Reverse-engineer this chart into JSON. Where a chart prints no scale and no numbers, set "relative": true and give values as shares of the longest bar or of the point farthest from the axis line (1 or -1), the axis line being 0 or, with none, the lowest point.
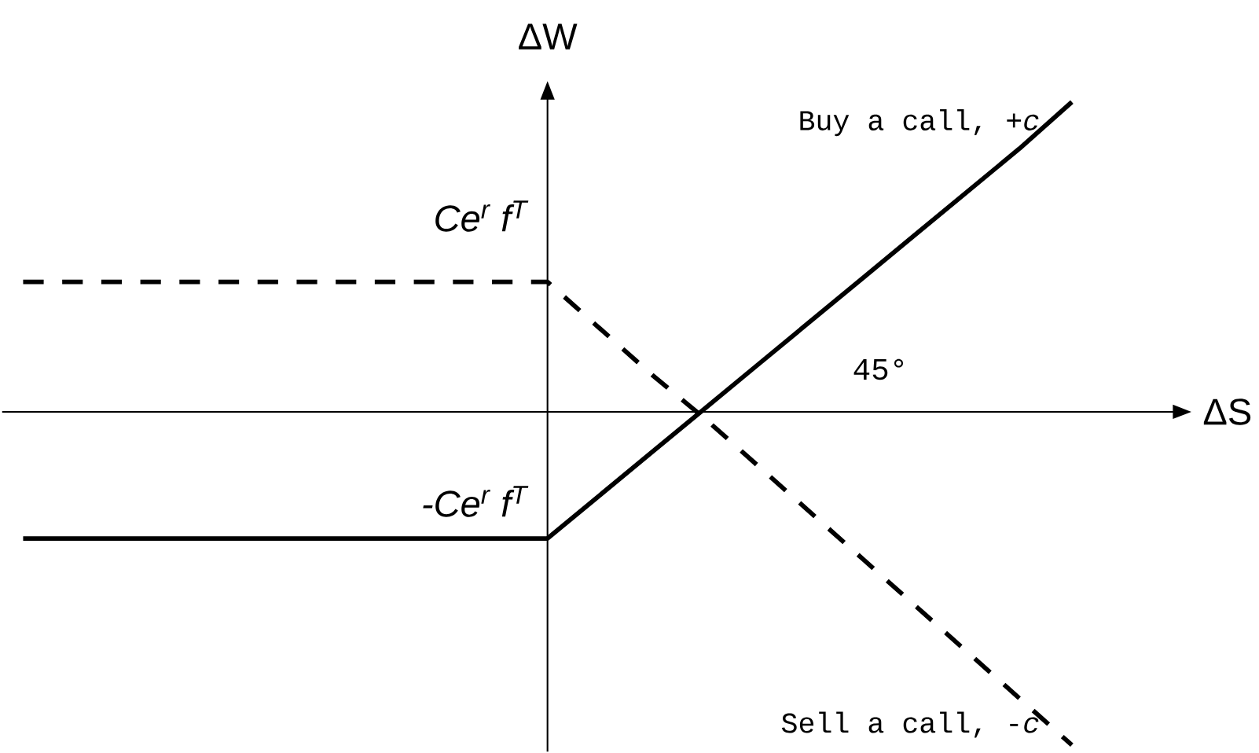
{
  "chart_data": {
    "type": "line",
    "relative": true,
    "xlabel": "ΔS",
    "ylabel": "ΔW",
    "categories": [
      null,
      null,
      null,
      null,
      null,
      null,
      null,
      null,
      null,
      null,
      null,
      null,
      null,
      null,
      null,
      null,
      null,
      null,
      null,
      null,
      null
    ],
    "series": [
      {
        "name": "Buy a call, +*c*",
        "color": "#000000",
        "line_style": "solid",
        "values": [
          -0.38,
          -0.38,
          -0.38,
          -0.38,
          -0.38,
          -0.38,
          -0.38,
          -0.38,
          -0.38,
          -0.38,
          -0.38,
          -0.25,
          -0.12,
          0.01,
          0.14,
          0.27,
          0.4,
          0.53,
          0.66,
          0.79,
          0.93
        ]
      },
      {
        "name": "Sell a call, -*c*",
        "color": "#000000",
        "line_style": "dashed",
        "values": [
          0.39,
          0.39,
          0.39,
          0.39,
          0.39,
          0.39,
          0.39,
          0.39,
          0.39,
          0.39,
          0.39,
          0.25,
          0.11,
          -0.02,
          -0.16,
          -0.3,
          -0.44,
          -0.58,
          -0.72,
          -0.86,
          -1.0
        ]
      }
    ],
    "annotations": [
      {
        "text": "Ce$^{r}$ f$^{T}$",
        "y": 0.39
      },
      {
        "text": "-Ce$^{r}$ f$^{T}$",
        "y": -0.38
      },
      "45°"
    ],
    "marker": "none"
  }
}
